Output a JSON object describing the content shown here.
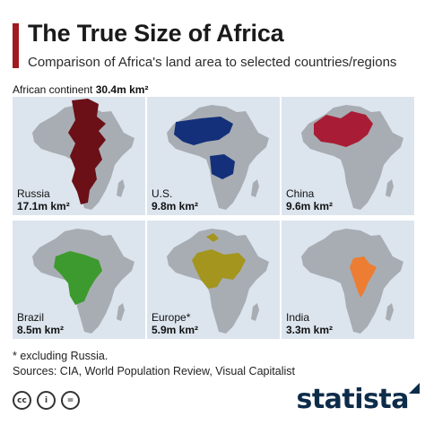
{
  "header": {
    "title": "The True Size of Africa",
    "subtitle": "Comparison of Africa's land area to selected countries/regions"
  },
  "continent": {
    "label": "African continent",
    "area": "30.4m km²"
  },
  "colors": {
    "accent": "#a01a1f",
    "panel_bg": "#dce5ee",
    "africa": "#a8adb3",
    "brand": "#0d2c4a"
  },
  "chart_data": {
    "type": "table",
    "unit": "m km²",
    "africa_area": 30.4,
    "categories": [
      "Russia",
      "U.S.",
      "China",
      "Brazil",
      "Europe",
      "India"
    ],
    "values": [
      17.1,
      9.8,
      9.6,
      8.5,
      5.9,
      3.3
    ],
    "panels": [
      {
        "name": "Russia",
        "suffix": "",
        "area": "17.1m km²",
        "value": 17.1,
        "color": "#6b1017"
      },
      {
        "name": "U.S.",
        "suffix": "",
        "area": "9.8m km²",
        "value": 9.8,
        "color": "#14307a"
      },
      {
        "name": "China",
        "suffix": "",
        "area": "9.6m km²",
        "value": 9.6,
        "color": "#a81d35"
      },
      {
        "name": "Brazil",
        "suffix": "",
        "area": "8.5m km²",
        "value": 8.5,
        "color": "#3d9a2e"
      },
      {
        "name": "Europe",
        "suffix": "*",
        "area": "5.9m km²",
        "value": 5.9,
        "color": "#a3951e"
      },
      {
        "name": "India",
        "suffix": "",
        "area": "3.3m km²",
        "value": 3.3,
        "color": "#ec7d32"
      }
    ]
  },
  "footer": {
    "footnote": "* excluding Russia.",
    "sources": "Sources: CIA, World Population Review, Visual Capitalist",
    "brand": "statista",
    "license_icons": [
      "cc-icon",
      "by-icon",
      "equals-icon"
    ],
    "license_glyphs": [
      "cc",
      "i",
      "="
    ]
  }
}
